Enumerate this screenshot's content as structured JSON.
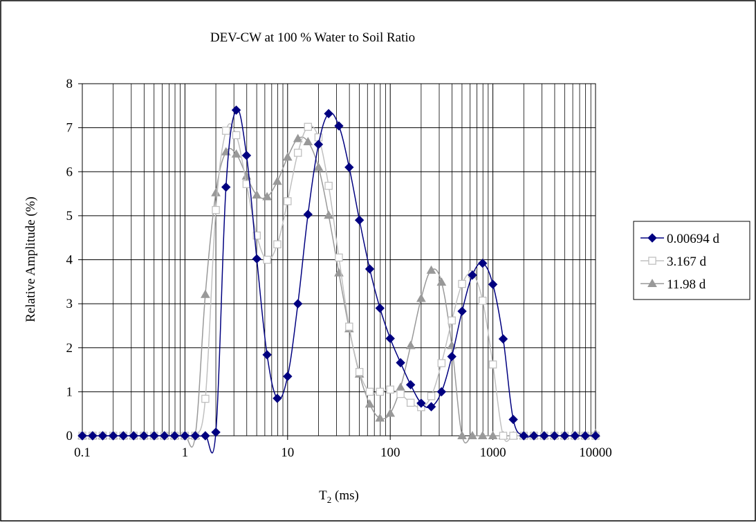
{
  "chart_data": {
    "type": "line",
    "title": "DEV-CW at 100 % Water to Soil Ratio",
    "xlabel_main": "T",
    "xlabel_sub": "2",
    "xlabel_unit": " (ms)",
    "ylabel": "Relative Amplitude (%)",
    "xscale": "log",
    "xlim": [
      0.1,
      10000
    ],
    "ylim": [
      0,
      8
    ],
    "x_ticks": [
      0.1,
      1,
      10,
      100,
      1000,
      10000
    ],
    "x_tick_labels": [
      "0.1",
      "1",
      "10",
      "100",
      "1000",
      "10000"
    ],
    "y_ticks": [
      0,
      1,
      2,
      3,
      4,
      5,
      6,
      7,
      8
    ],
    "y_tick_labels": [
      "0",
      "1",
      "2",
      "3",
      "4",
      "5",
      "6",
      "7",
      "8"
    ],
    "grid": "major and minor",
    "legend_position": "right",
    "x": [
      0.1,
      0.126,
      0.158,
      0.2,
      0.251,
      0.316,
      0.398,
      0.501,
      0.631,
      0.794,
      1.0,
      1.26,
      1.58,
      2.0,
      2.51,
      3.16,
      3.98,
      5.01,
      6.31,
      7.94,
      10.0,
      12.6,
      15.8,
      20.0,
      25.1,
      31.6,
      39.8,
      50.1,
      63.1,
      79.4,
      100,
      126,
      158,
      200,
      251,
      316,
      398,
      501,
      631,
      794,
      1000,
      1260,
      1580,
      2000,
      2510,
      3160,
      3980,
      5010,
      6310,
      7940,
      10000
    ],
    "series": [
      {
        "name": "0.00694 d",
        "color": "#000080",
        "marker": "diamond",
        "values": [
          0,
          0,
          0,
          0,
          0,
          0,
          0,
          0,
          0,
          0,
          0,
          0,
          0,
          0.08,
          5.65,
          7.4,
          6.37,
          4.02,
          1.84,
          0.85,
          1.35,
          3.0,
          5.03,
          6.62,
          7.32,
          7.04,
          6.1,
          4.9,
          3.79,
          2.9,
          2.21,
          1.66,
          1.16,
          0.74,
          0.66,
          1.0,
          1.8,
          2.83,
          3.65,
          3.92,
          3.44,
          2.2,
          0.37,
          0,
          0,
          0,
          0,
          0,
          0,
          0,
          0
        ]
      },
      {
        "name": "3.167 d",
        "color": "#c0c0c0",
        "marker": "square",
        "values": [
          0,
          0,
          0,
          0,
          0,
          0,
          0,
          0,
          0,
          0,
          0,
          0,
          0.84,
          5.13,
          6.93,
          6.83,
          5.72,
          4.55,
          4.0,
          4.35,
          5.33,
          6.43,
          7.02,
          6.78,
          5.68,
          4.05,
          2.48,
          1.45,
          1.0,
          1.0,
          1.05,
          0.95,
          0.75,
          0.65,
          0.9,
          1.65,
          2.62,
          3.45,
          3.67,
          3.07,
          1.62,
          0,
          0,
          0,
          0,
          0,
          0,
          0,
          0,
          0,
          0
        ]
      },
      {
        "name": "11.98 d",
        "color": "#999999",
        "marker": "triangle",
        "values": [
          0,
          0,
          0,
          0,
          0,
          0,
          0,
          0,
          0,
          0,
          0,
          0,
          3.21,
          5.52,
          6.45,
          6.4,
          5.9,
          5.47,
          5.43,
          5.78,
          6.33,
          6.75,
          6.68,
          6.1,
          5.01,
          3.7,
          2.43,
          1.4,
          0.72,
          0.4,
          0.51,
          1.1,
          2.05,
          3.12,
          3.76,
          3.49,
          2.05,
          0,
          0,
          0,
          0,
          0,
          0,
          0,
          0,
          0,
          0,
          0,
          0,
          0,
          0.05
        ]
      }
    ]
  }
}
